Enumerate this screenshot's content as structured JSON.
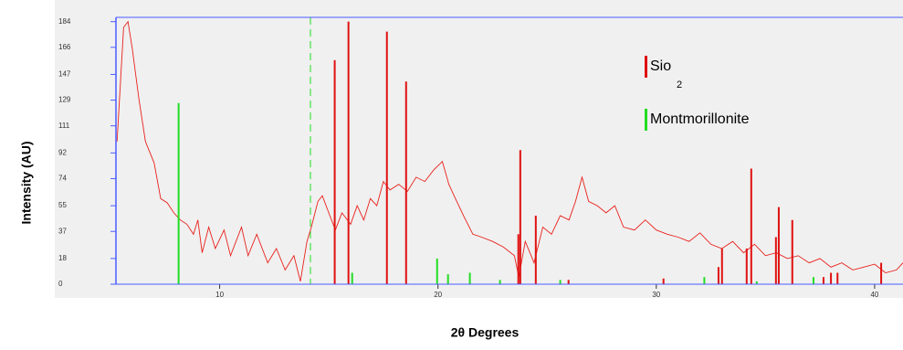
{
  "chart_data": {
    "type": "line",
    "y_label": "Intensity (AU)",
    "x_label": "2θ Degrees",
    "xlim": [
      5.25,
      41.3
    ],
    "ylim": [
      0,
      187
    ],
    "xticks": [
      10,
      20,
      30,
      40
    ],
    "yticks": [
      0,
      18,
      37,
      55,
      74,
      92,
      111,
      129,
      147,
      166,
      184
    ],
    "axis_color": "#4a5cff",
    "profile": {
      "color": "#e8201a",
      "x": [
        5.3,
        5.6,
        5.8,
        6.0,
        6.3,
        6.6,
        7.0,
        7.3,
        7.6,
        7.9,
        8.2,
        8.5,
        8.8,
        9.0,
        9.2,
        9.5,
        9.8,
        10.2,
        10.5,
        11.0,
        11.3,
        11.7,
        12.2,
        12.6,
        13.0,
        13.4,
        13.7,
        14.0,
        14.2,
        14.5,
        14.7,
        15.0,
        15.3,
        15.6,
        16.0,
        16.3,
        16.6,
        16.9,
        17.2,
        17.5,
        17.8,
        18.2,
        18.6,
        19.0,
        19.4,
        19.8,
        20.2,
        20.5,
        20.8,
        21.2,
        21.6,
        22.0,
        22.5,
        23.0,
        23.5,
        23.7,
        24.0,
        24.4,
        24.8,
        25.2,
        25.6,
        26.0,
        26.3,
        26.6,
        26.9,
        27.3,
        27.7,
        28.1,
        28.5,
        29.0,
        29.5,
        30.0,
        30.5,
        31.0,
        31.5,
        32.0,
        32.5,
        33.0,
        33.5,
        34.0,
        34.5,
        35.0,
        35.5,
        36.0,
        36.5,
        37.0,
        37.5,
        38.0,
        38.5,
        39.0,
        39.5,
        40.0,
        40.5,
        41.0,
        41.3
      ],
      "values": [
        100,
        180,
        184,
        165,
        130,
        100,
        85,
        60,
        57,
        50,
        45,
        42,
        35,
        45,
        22,
        40,
        25,
        38,
        20,
        40,
        20,
        35,
        15,
        25,
        10,
        20,
        2,
        30,
        40,
        58,
        62,
        50,
        38,
        50,
        42,
        55,
        45,
        60,
        55,
        72,
        66,
        70,
        65,
        75,
        72,
        80,
        86,
        70,
        60,
        47,
        35,
        33,
        30,
        26,
        20,
        5,
        30,
        15,
        40,
        35,
        48,
        45,
        58,
        75,
        58,
        55,
        50,
        55,
        40,
        38,
        45,
        38,
        35,
        33,
        30,
        36,
        28,
        25,
        30,
        22,
        28,
        20,
        22,
        18,
        20,
        15,
        18,
        12,
        15,
        10,
        12,
        14,
        8,
        10,
        15
      ]
    },
    "series": [
      {
        "name": "Sio",
        "subscript": "2",
        "color": "#e01010",
        "x": [
          15.27,
          15.9,
          17.66,
          18.54,
          23.68,
          23.77,
          24.48,
          25.98,
          30.33,
          32.85,
          33.01,
          34.14,
          34.35,
          35.48,
          35.61,
          36.23,
          37.66,
          38.0,
          38.3,
          40.3
        ],
        "values": [
          157,
          184,
          177,
          142,
          35,
          94,
          48,
          3,
          4,
          12,
          25,
          25,
          81,
          33,
          54,
          45,
          5,
          8,
          8,
          15
        ]
      },
      {
        "name": "Montmorillonite",
        "color": "#22dd22",
        "x": [
          8.12,
          16.07,
          19.96,
          20.46,
          21.46,
          22.84,
          25.6,
          32.2,
          34.6,
          37.2
        ],
        "values": [
          127,
          8,
          18,
          7,
          8,
          3,
          3,
          5,
          2,
          5
        ]
      }
    ]
  }
}
